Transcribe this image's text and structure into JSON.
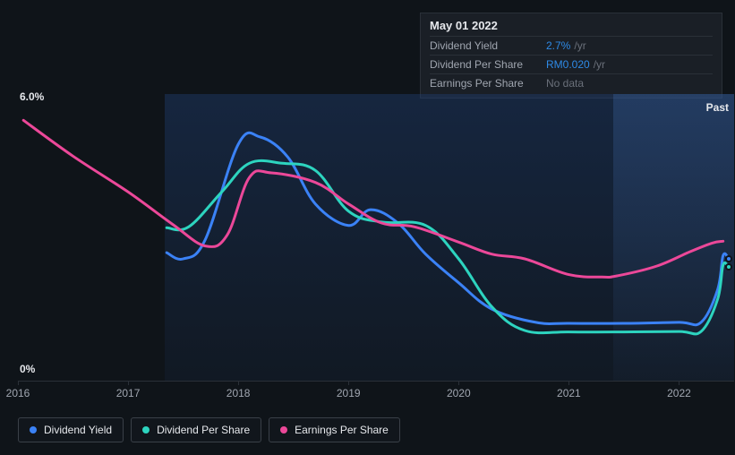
{
  "tooltip": {
    "date": "May 01 2022",
    "rows": [
      {
        "label": "Dividend Yield",
        "value": "2.7%",
        "unit": "/yr",
        "value_color": "#2e8ae6"
      },
      {
        "label": "Dividend Per Share",
        "value": "RM0.020",
        "unit": "/yr",
        "value_color": "#2e8ae6"
      },
      {
        "label": "Earnings Per Share",
        "value": "No data",
        "unit": "",
        "value_color": "#6a707a"
      }
    ]
  },
  "chart": {
    "type": "line",
    "background_color": "#0f1419",
    "plot_gradient_top": "rgba(30,60,110,0.45)",
    "plot_gradient_bottom": "rgba(30,60,110,0.12)",
    "past_label": "Past",
    "y_max_label": "6.0%",
    "y_min_label": "0%",
    "ylim": [
      0,
      6.0
    ],
    "xlim": [
      2016,
      2022.5
    ],
    "x_ticks": [
      2016,
      2017,
      2018,
      2019,
      2020,
      2021,
      2022
    ],
    "gradient_start_x": 2017.35,
    "future_start_x": 2021.4,
    "line_width": 3,
    "label_fontsize": 12,
    "label_color": "#e6e8ec",
    "tick_color": "#a0a6b0",
    "grid_color": "#2a3038",
    "series": [
      {
        "name": "Dividend Yield",
        "color": "#3b82f6",
        "points": [
          [
            2017.35,
            2.68
          ],
          [
            2017.5,
            2.55
          ],
          [
            2017.7,
            2.95
          ],
          [
            2018.0,
            4.95
          ],
          [
            2018.2,
            5.1
          ],
          [
            2018.45,
            4.68
          ],
          [
            2018.7,
            3.7
          ],
          [
            2019.0,
            3.25
          ],
          [
            2019.2,
            3.58
          ],
          [
            2019.45,
            3.3
          ],
          [
            2019.7,
            2.65
          ],
          [
            2020.0,
            2.05
          ],
          [
            2020.3,
            1.5
          ],
          [
            2020.7,
            1.22
          ],
          [
            2021.0,
            1.2
          ],
          [
            2021.5,
            1.2
          ],
          [
            2022.0,
            1.22
          ],
          [
            2022.2,
            1.22
          ],
          [
            2022.35,
            1.9
          ],
          [
            2022.4,
            2.62
          ],
          [
            2022.45,
            2.55
          ]
        ],
        "marker_at": [
          2022.45,
          2.55
        ]
      },
      {
        "name": "Dividend Per Share",
        "color": "#2dd4bf",
        "points": [
          [
            2017.35,
            3.2
          ],
          [
            2017.55,
            3.22
          ],
          [
            2017.85,
            3.95
          ],
          [
            2018.1,
            4.55
          ],
          [
            2018.4,
            4.55
          ],
          [
            2018.7,
            4.4
          ],
          [
            2019.0,
            3.55
          ],
          [
            2019.3,
            3.32
          ],
          [
            2019.7,
            3.25
          ],
          [
            2020.0,
            2.55
          ],
          [
            2020.3,
            1.55
          ],
          [
            2020.6,
            1.05
          ],
          [
            2021.0,
            1.02
          ],
          [
            2021.5,
            1.02
          ],
          [
            2022.0,
            1.03
          ],
          [
            2022.2,
            1.03
          ],
          [
            2022.35,
            1.7
          ],
          [
            2022.4,
            2.42
          ],
          [
            2022.45,
            2.38
          ]
        ],
        "marker_at": [
          2022.45,
          2.38
        ]
      },
      {
        "name": "Earnings Per Share",
        "color": "#ec4899",
        "points": [
          [
            2016.05,
            5.45
          ],
          [
            2016.5,
            4.7
          ],
          [
            2017.0,
            3.95
          ],
          [
            2017.4,
            3.28
          ],
          [
            2017.7,
            2.82
          ],
          [
            2017.9,
            3.05
          ],
          [
            2018.1,
            4.25
          ],
          [
            2018.3,
            4.35
          ],
          [
            2018.7,
            4.15
          ],
          [
            2019.0,
            3.7
          ],
          [
            2019.3,
            3.3
          ],
          [
            2019.6,
            3.22
          ],
          [
            2020.0,
            2.9
          ],
          [
            2020.3,
            2.65
          ],
          [
            2020.6,
            2.55
          ],
          [
            2021.0,
            2.22
          ],
          [
            2021.3,
            2.17
          ],
          [
            2021.45,
            2.2
          ],
          [
            2021.8,
            2.4
          ],
          [
            2022.1,
            2.7
          ],
          [
            2022.3,
            2.88
          ],
          [
            2022.4,
            2.92
          ]
        ]
      }
    ]
  },
  "legend": {
    "items": [
      {
        "label": "Dividend Yield",
        "color": "#3b82f6"
      },
      {
        "label": "Dividend Per Share",
        "color": "#2dd4bf"
      },
      {
        "label": "Earnings Per Share",
        "color": "#ec4899"
      }
    ],
    "border_color": "#3a4048",
    "text_color": "#e6e8ec",
    "fontsize": 12
  }
}
